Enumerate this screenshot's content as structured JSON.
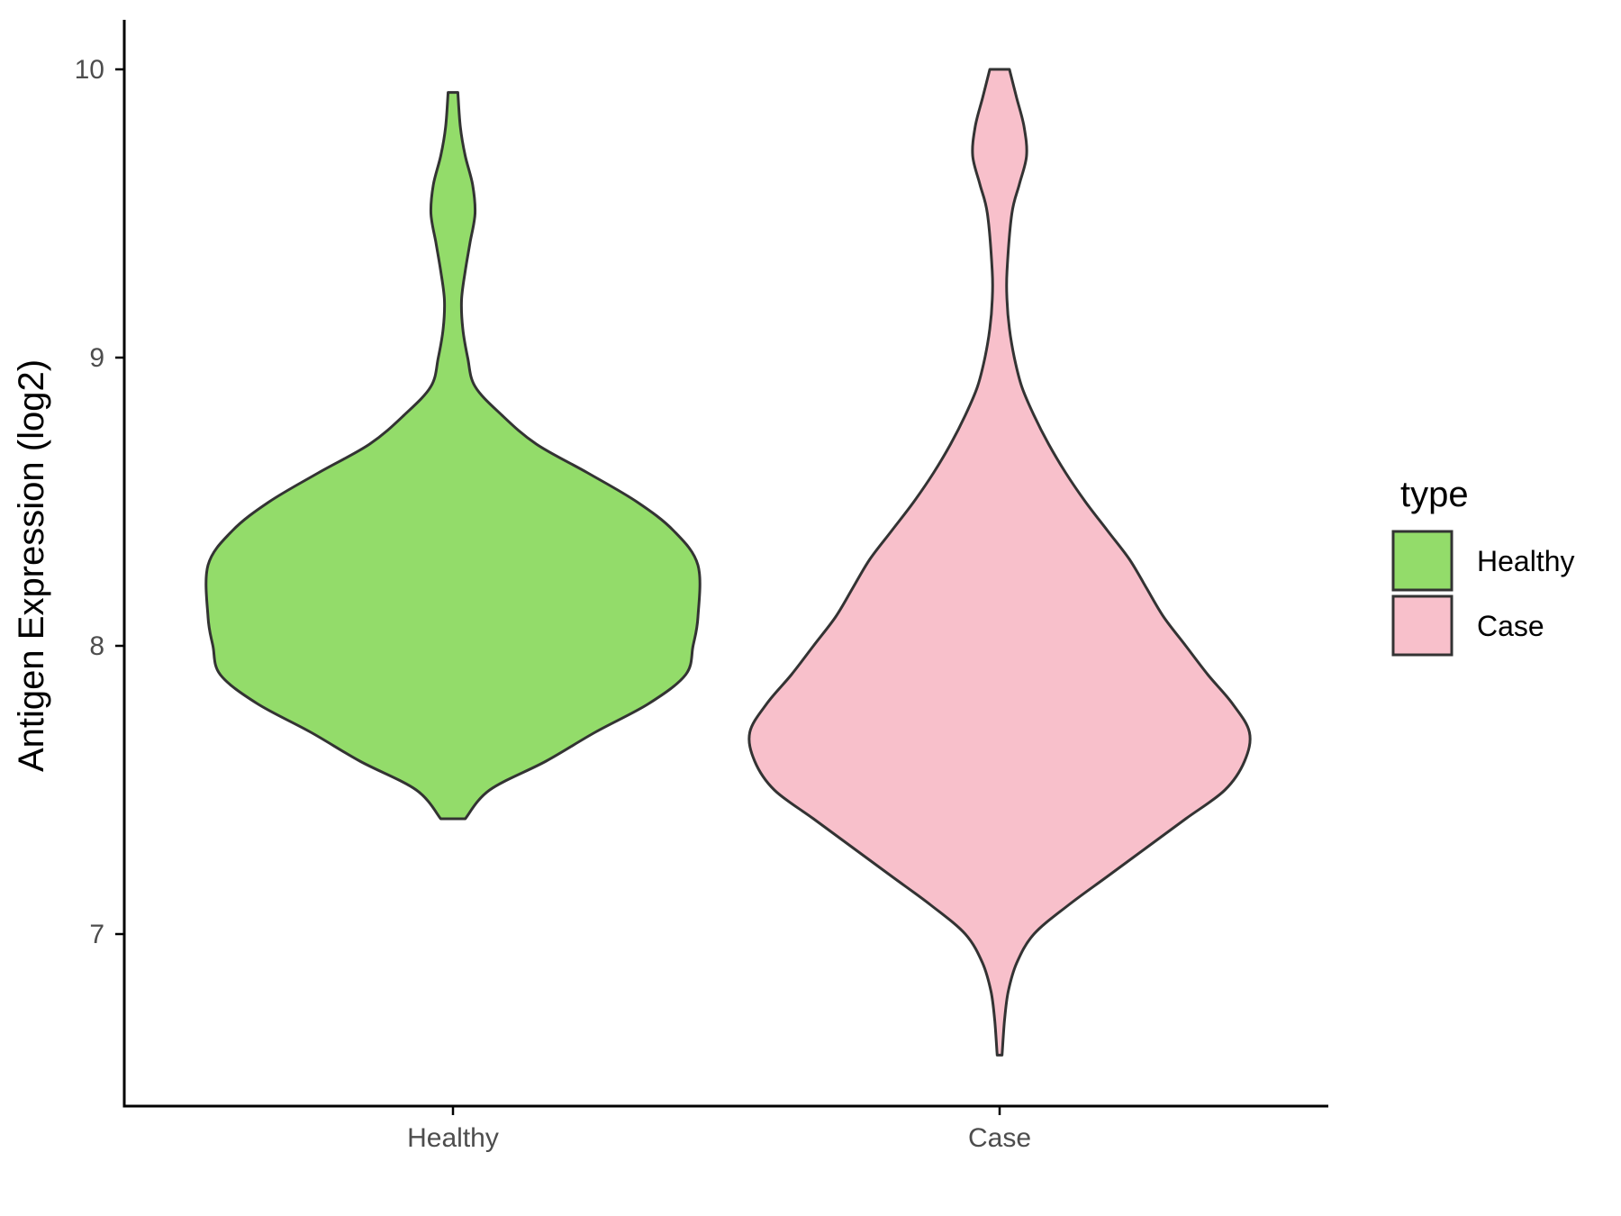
{
  "chart_data": {
    "type": "violin",
    "title": "",
    "xlabel": "",
    "ylabel": "Antigen Expression (log2)",
    "ylim": [
      6.4,
      10.17
    ],
    "y_ticks": [
      7,
      8,
      9,
      10
    ],
    "y_tick_labels": [
      "7",
      "8",
      "9",
      "10"
    ],
    "categories": [
      "Healthy",
      "Case"
    ],
    "grid": false,
    "legend": {
      "title": "type",
      "placement": "right",
      "entries": [
        {
          "label": "Healthy",
          "color": "#93dc6a"
        },
        {
          "label": "Case",
          "color": "#f8c0cb"
        }
      ]
    },
    "series": [
      {
        "category": "Healthy",
        "color": "#93dc6a",
        "min": 7.4,
        "max": 9.92,
        "profile": [
          [
            7.4,
            0.05
          ],
          [
            7.5,
            0.15
          ],
          [
            7.6,
            0.38
          ],
          [
            7.7,
            0.58
          ],
          [
            7.8,
            0.8
          ],
          [
            7.9,
            0.95
          ],
          [
            8.0,
            0.98
          ],
          [
            8.1,
            1.0
          ],
          [
            8.28,
            1.0
          ],
          [
            8.4,
            0.9
          ],
          [
            8.5,
            0.75
          ],
          [
            8.6,
            0.55
          ],
          [
            8.7,
            0.34
          ],
          [
            8.8,
            0.2
          ],
          [
            8.9,
            0.09
          ],
          [
            9.0,
            0.06
          ],
          [
            9.1,
            0.04
          ],
          [
            9.2,
            0.035
          ],
          [
            9.3,
            0.05
          ],
          [
            9.4,
            0.07
          ],
          [
            9.5,
            0.09
          ],
          [
            9.6,
            0.08
          ],
          [
            9.7,
            0.05
          ],
          [
            9.8,
            0.03
          ],
          [
            9.92,
            0.02
          ]
        ]
      },
      {
        "category": "Case",
        "color": "#f8c0cb",
        "min": 6.58,
        "max": 10.0,
        "profile": [
          [
            6.58,
            0.01
          ],
          [
            6.7,
            0.02
          ],
          [
            6.8,
            0.035
          ],
          [
            6.9,
            0.07
          ],
          [
            7.0,
            0.14
          ],
          [
            7.1,
            0.28
          ],
          [
            7.2,
            0.44
          ],
          [
            7.3,
            0.6
          ],
          [
            7.4,
            0.76
          ],
          [
            7.5,
            0.92
          ],
          [
            7.6,
            1.0
          ],
          [
            7.7,
            1.02
          ],
          [
            7.8,
            0.95
          ],
          [
            7.9,
            0.85
          ],
          [
            8.0,
            0.76
          ],
          [
            8.1,
            0.67
          ],
          [
            8.2,
            0.6
          ],
          [
            8.3,
            0.53
          ],
          [
            8.4,
            0.44
          ],
          [
            8.5,
            0.35
          ],
          [
            8.6,
            0.27
          ],
          [
            8.7,
            0.2
          ],
          [
            8.8,
            0.14
          ],
          [
            8.9,
            0.09
          ],
          [
            9.0,
            0.06
          ],
          [
            9.1,
            0.04
          ],
          [
            9.2,
            0.03
          ],
          [
            9.3,
            0.03
          ],
          [
            9.5,
            0.05
          ],
          [
            9.6,
            0.08
          ],
          [
            9.7,
            0.11
          ],
          [
            9.8,
            0.1
          ],
          [
            9.9,
            0.07
          ],
          [
            10.0,
            0.04
          ]
        ]
      }
    ]
  }
}
